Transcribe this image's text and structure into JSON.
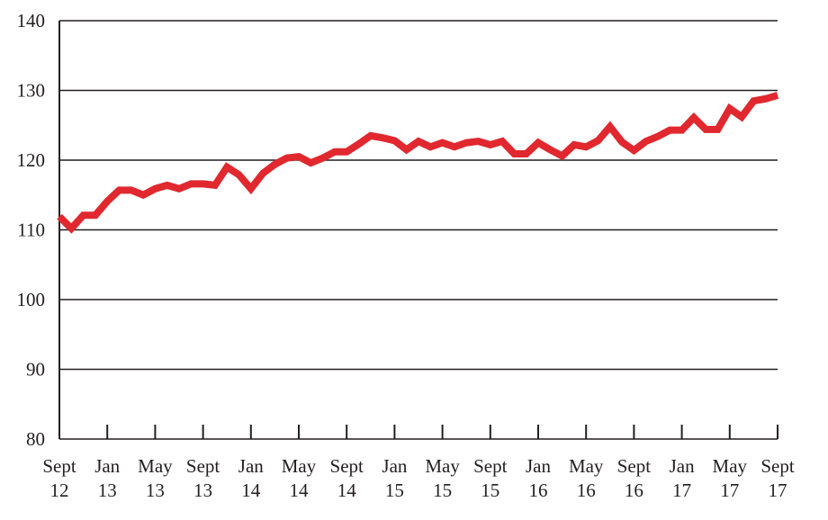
{
  "chart_data": {
    "type": "line",
    "categories": [
      "Sept 12",
      null,
      null,
      null,
      "Jan 13",
      null,
      null,
      null,
      "May 13",
      null,
      null,
      null,
      "Sept 13",
      null,
      null,
      null,
      "Jan 14",
      null,
      null,
      null,
      "May 14",
      null,
      null,
      null,
      "Sept 14",
      null,
      null,
      null,
      "Jan 15",
      null,
      null,
      null,
      "May 15",
      null,
      null,
      null,
      "Sept 15",
      null,
      null,
      null,
      "Jan 16",
      null,
      null,
      null,
      "May 16",
      null,
      null,
      null,
      "Sept 16",
      null,
      null,
      null,
      "Jan 17",
      null,
      null,
      null,
      "May 17",
      null,
      null,
      null,
      "Sept 17"
    ],
    "series": [
      {
        "color": "#e0282e",
        "values": [
          111.9,
          110.2,
          112.1,
          112.1,
          114.1,
          115.7,
          115.7,
          115.0,
          115.9,
          116.4,
          115.9,
          116.6,
          116.6,
          116.4,
          119.0,
          117.9,
          115.9,
          118.1,
          119.4,
          120.3,
          120.5,
          119.6,
          120.3,
          121.2,
          121.2,
          122.3,
          123.5,
          123.2,
          122.8,
          121.5,
          122.7,
          121.9,
          122.5,
          121.9,
          122.5,
          122.7,
          122.2,
          122.7,
          120.9,
          120.9,
          122.5,
          121.5,
          120.6,
          122.2,
          121.9,
          122.8,
          124.8,
          122.6,
          121.4,
          122.7,
          123.4,
          124.3,
          124.3,
          126.1,
          124.4,
          124.4,
          127.4,
          126.2,
          128.5,
          128.8,
          129.3
        ]
      }
    ],
    "ylim": [
      80,
      140
    ],
    "yticks": [
      80,
      90,
      100,
      110,
      120,
      130,
      140
    ],
    "grid": true
  }
}
